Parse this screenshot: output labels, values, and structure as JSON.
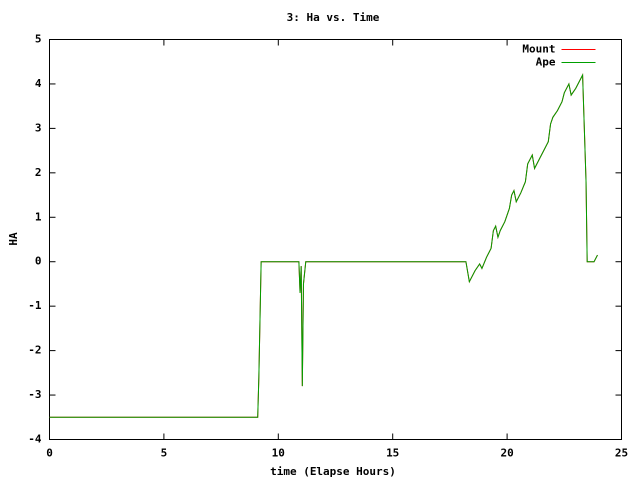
{
  "chart_data": {
    "type": "line",
    "title": "3: Ha vs. Time",
    "xlabel": "time (Elapse Hours)",
    "ylabel": "HA",
    "x": [
      0,
      9.1,
      9.15,
      9.25,
      10.9,
      10.95,
      11.0,
      11.05,
      11.1,
      11.2,
      18.2,
      18.35,
      18.6,
      18.8,
      18.9,
      19.1,
      19.3,
      19.4,
      19.5,
      19.6,
      19.7,
      19.9,
      20.1,
      20.2,
      20.3,
      20.4,
      20.6,
      20.8,
      20.9,
      21.1,
      21.2,
      21.4,
      21.6,
      21.8,
      21.9,
      22.0,
      22.2,
      22.4,
      22.5,
      22.7,
      22.8,
      23.0,
      23.2,
      23.3,
      23.45,
      23.5,
      23.8,
      23.95
    ],
    "series": [
      {
        "name": "Mount",
        "color": "#ff0000",
        "values": [
          -3.5,
          -3.5,
          -2.6,
          0,
          0,
          -0.7,
          -0.1,
          -2.8,
          -0.5,
          0,
          0,
          -0.45,
          -0.2,
          -0.05,
          -0.15,
          0.1,
          0.3,
          0.7,
          0.8,
          0.55,
          0.7,
          0.9,
          1.2,
          1.5,
          1.6,
          1.35,
          1.55,
          1.8,
          2.2,
          2.4,
          2.1,
          2.3,
          2.5,
          2.7,
          3.1,
          3.25,
          3.4,
          3.6,
          3.8,
          4.0,
          3.75,
          3.9,
          4.1,
          4.2,
          1.8,
          0,
          0,
          0.15
        ]
      },
      {
        "name": "Ape",
        "color": "#00a000",
        "values": [
          -3.5,
          -3.5,
          -2.6,
          0,
          0,
          -0.7,
          -0.1,
          -2.8,
          -0.5,
          0,
          0,
          -0.45,
          -0.2,
          -0.05,
          -0.15,
          0.1,
          0.3,
          0.7,
          0.8,
          0.55,
          0.7,
          0.9,
          1.2,
          1.5,
          1.6,
          1.35,
          1.55,
          1.8,
          2.2,
          2.4,
          2.1,
          2.3,
          2.5,
          2.7,
          3.1,
          3.25,
          3.4,
          3.6,
          3.8,
          4.0,
          3.75,
          3.9,
          4.1,
          4.2,
          1.8,
          0,
          0,
          0.15
        ]
      }
    ],
    "xlim": [
      0,
      25
    ],
    "xticks": [
      0,
      5,
      10,
      15,
      20,
      25
    ],
    "ylim": [
      -4,
      5
    ],
    "yticks": [
      -4,
      -3,
      -2,
      -1,
      0,
      1,
      2,
      3,
      4,
      5
    ],
    "legend": "top right"
  }
}
